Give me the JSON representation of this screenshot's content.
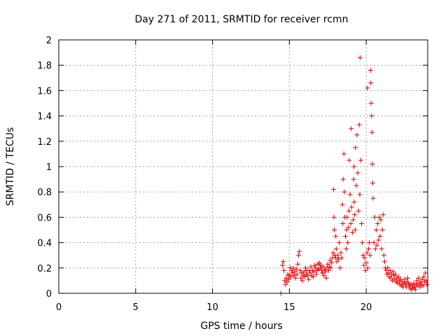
{
  "chart_data": {
    "type": "scatter",
    "title": "Day 271 of 2011, SRMTID for receiver rcmn",
    "xlabel": "GPS time / hours",
    "ylabel": "SRMTID / TECUs",
    "xlim": [
      0,
      24
    ],
    "ylim": [
      0,
      2
    ],
    "xticks": [
      0,
      5,
      10,
      15,
      20
    ],
    "yticks": [
      0,
      0.2,
      0.4,
      0.6,
      0.8,
      1,
      1.2,
      1.4,
      1.6,
      1.8,
      2
    ],
    "ytick_labels": [
      "0",
      "0.2",
      "0.4",
      "0.6",
      "0.8",
      "1",
      "1.2",
      "1.4",
      "1.6",
      "1.8",
      "2"
    ],
    "xtick_labels": [
      "0",
      "5",
      "10",
      "15",
      "20"
    ],
    "grid": true,
    "marker": "plus",
    "color": "#dd0000",
    "series": [
      {
        "name": "SRMTID",
        "points": [
          [
            14.45,
            0.0
          ],
          [
            14.55,
            0.22
          ],
          [
            14.6,
            0.25
          ],
          [
            14.65,
            0.18
          ],
          [
            14.7,
            0.1
          ],
          [
            14.75,
            0.07
          ],
          [
            14.8,
            0.12
          ],
          [
            14.85,
            0.09
          ],
          [
            14.9,
            0.15
          ],
          [
            14.95,
            0.11
          ],
          [
            15.0,
            0.14
          ],
          [
            15.05,
            0.2
          ],
          [
            15.1,
            0.13
          ],
          [
            15.15,
            0.18
          ],
          [
            15.2,
            0.16
          ],
          [
            15.25,
            0.2
          ],
          [
            15.3,
            0.14
          ],
          [
            15.35,
            0.17
          ],
          [
            15.4,
            0.12
          ],
          [
            15.45,
            0.19
          ],
          [
            15.5,
            0.15
          ],
          [
            15.55,
            0.23
          ],
          [
            15.6,
            0.3
          ],
          [
            15.65,
            0.33
          ],
          [
            15.7,
            0.18
          ],
          [
            15.75,
            0.12
          ],
          [
            15.8,
            0.16
          ],
          [
            15.85,
            0.1
          ],
          [
            15.9,
            0.14
          ],
          [
            15.95,
            0.17
          ],
          [
            16.0,
            0.13
          ],
          [
            16.05,
            0.2
          ],
          [
            16.1,
            0.15
          ],
          [
            16.15,
            0.18
          ],
          [
            16.2,
            0.14
          ],
          [
            16.25,
            0.11
          ],
          [
            16.3,
            0.18
          ],
          [
            16.35,
            0.16
          ],
          [
            16.4,
            0.21
          ],
          [
            16.45,
            0.14
          ],
          [
            16.5,
            0.18
          ],
          [
            16.55,
            0.13
          ],
          [
            16.6,
            0.17
          ],
          [
            16.65,
            0.22
          ],
          [
            16.7,
            0.2
          ],
          [
            16.75,
            0.15
          ],
          [
            16.8,
            0.18
          ],
          [
            16.85,
            0.23
          ],
          [
            16.9,
            0.19
          ],
          [
            16.95,
            0.24
          ],
          [
            17.0,
            0.2
          ],
          [
            17.05,
            0.22
          ],
          [
            17.1,
            0.18
          ],
          [
            17.15,
            0.16
          ],
          [
            17.2,
            0.21
          ],
          [
            17.25,
            0.14
          ],
          [
            17.3,
            0.19
          ],
          [
            17.35,
            0.17
          ],
          [
            17.4,
            0.12
          ],
          [
            17.45,
            0.2
          ],
          [
            17.5,
            0.23
          ],
          [
            17.55,
            0.18
          ],
          [
            17.6,
            0.21
          ],
          [
            17.65,
            0.26
          ],
          [
            17.7,
            0.2
          ],
          [
            17.75,
            0.24
          ],
          [
            17.8,
            0.28
          ],
          [
            17.85,
            0.32
          ],
          [
            17.88,
            0.82
          ],
          [
            17.9,
            0.6
          ],
          [
            17.92,
            0.5
          ],
          [
            17.95,
            0.3
          ],
          [
            18.0,
            0.28
          ],
          [
            18.02,
            0.45
          ],
          [
            18.05,
            0.35
          ],
          [
            18.1,
            0.25
          ],
          [
            18.15,
            0.3
          ],
          [
            18.2,
            0.27
          ],
          [
            18.25,
            0.4
          ],
          [
            18.3,
            0.2
          ],
          [
            18.35,
            0.32
          ],
          [
            18.4,
            0.28
          ],
          [
            18.45,
            0.7
          ],
          [
            18.48,
            0.55
          ],
          [
            18.5,
            0.9
          ],
          [
            18.55,
            1.1
          ],
          [
            18.58,
            0.8
          ],
          [
            18.6,
            0.6
          ],
          [
            18.65,
            0.45
          ],
          [
            18.7,
            0.35
          ],
          [
            18.72,
            0.5
          ],
          [
            18.75,
            0.6
          ],
          [
            18.8,
            0.4
          ],
          [
            18.85,
            0.52
          ],
          [
            18.88,
            0.65
          ],
          [
            18.9,
            1.05
          ],
          [
            18.95,
            0.78
          ],
          [
            19.0,
            0.55
          ],
          [
            19.02,
            1.3
          ],
          [
            19.05,
            0.68
          ],
          [
            19.1,
            0.48
          ],
          [
            19.15,
            0.58
          ],
          [
            19.18,
            0.9
          ],
          [
            19.2,
            1.0
          ],
          [
            19.22,
            0.72
          ],
          [
            19.25,
            0.62
          ],
          [
            19.28,
            0.5
          ],
          [
            19.3,
            1.15
          ],
          [
            19.35,
            0.85
          ],
          [
            19.4,
            1.25
          ],
          [
            19.45,
            0.95
          ],
          [
            19.5,
            0.65
          ],
          [
            19.55,
            1.33
          ],
          [
            19.58,
            0.78
          ],
          [
            19.6,
            1.86
          ],
          [
            19.65,
            1.05
          ],
          [
            19.7,
            0.55
          ],
          [
            19.75,
            0.4
          ],
          [
            19.8,
            0.3
          ],
          [
            19.85,
            0.22
          ],
          [
            19.9,
            0.28
          ],
          [
            19.95,
            0.18
          ],
          [
            20.0,
            0.24
          ],
          [
            20.05,
            0.32
          ],
          [
            20.08,
            1.62
          ],
          [
            20.1,
            0.2
          ],
          [
            20.15,
            0.35
          ],
          [
            20.2,
            0.4
          ],
          [
            20.25,
            0.3
          ],
          [
            20.28,
            1.76
          ],
          [
            20.3,
            1.66
          ],
          [
            20.32,
            1.5
          ],
          [
            20.35,
            1.4
          ],
          [
            20.38,
            1.27
          ],
          [
            20.4,
            1.02
          ],
          [
            20.42,
            0.87
          ],
          [
            20.45,
            0.75
          ],
          [
            20.5,
            0.4
          ],
          [
            20.55,
            0.6
          ],
          [
            20.6,
            0.35
          ],
          [
            20.65,
            0.5
          ],
          [
            20.7,
            0.38
          ],
          [
            20.75,
            0.55
          ],
          [
            20.8,
            0.42
          ],
          [
            20.85,
            0.6
          ],
          [
            20.9,
            0.45
          ],
          [
            20.95,
            0.58
          ],
          [
            21.0,
            0.35
          ],
          [
            21.05,
            0.5
          ],
          [
            21.1,
            0.62
          ],
          [
            21.15,
            0.3
          ],
          [
            21.2,
            0.25
          ],
          [
            21.25,
            0.2
          ],
          [
            21.3,
            0.18
          ],
          [
            21.35,
            0.15
          ],
          [
            21.4,
            0.2
          ],
          [
            21.45,
            0.16
          ],
          [
            21.5,
            0.13
          ],
          [
            21.55,
            0.18
          ],
          [
            21.6,
            0.12
          ],
          [
            21.65,
            0.15
          ],
          [
            21.7,
            0.1
          ],
          [
            21.75,
            0.17
          ],
          [
            21.8,
            0.14
          ],
          [
            21.85,
            0.11
          ],
          [
            21.9,
            0.15
          ],
          [
            21.95,
            0.09
          ],
          [
            22.0,
            0.12
          ],
          [
            22.05,
            0.08
          ],
          [
            22.1,
            0.13
          ],
          [
            22.15,
            0.1
          ],
          [
            22.2,
            0.07
          ],
          [
            22.25,
            0.11
          ],
          [
            22.3,
            0.06
          ],
          [
            22.35,
            0.09
          ],
          [
            22.4,
            0.05
          ],
          [
            22.45,
            0.08
          ],
          [
            22.5,
            0.11
          ],
          [
            22.55,
            0.07
          ],
          [
            22.6,
            0.05
          ],
          [
            22.65,
            0.09
          ],
          [
            22.7,
            0.12
          ],
          [
            22.75,
            0.08
          ],
          [
            22.8,
            0.06
          ],
          [
            22.85,
            0.04
          ],
          [
            22.9,
            0.07
          ],
          [
            22.95,
            0.03
          ],
          [
            23.0,
            0.06
          ],
          [
            23.05,
            0.04
          ],
          [
            23.1,
            0.08
          ],
          [
            23.15,
            0.05
          ],
          [
            23.2,
            0.03
          ],
          [
            23.25,
            0.07
          ],
          [
            23.3,
            0.1
          ],
          [
            23.35,
            0.06
          ],
          [
            23.4,
            0.12
          ],
          [
            23.45,
            0.08
          ],
          [
            23.5,
            0.05
          ],
          [
            23.55,
            0.09
          ],
          [
            23.6,
            0.07
          ],
          [
            23.65,
            0.11
          ],
          [
            23.7,
            0.06
          ],
          [
            23.75,
            0.13
          ],
          [
            23.8,
            0.09
          ],
          [
            23.85,
            0.16
          ],
          [
            23.9,
            0.1
          ],
          [
            23.95,
            0.07
          ]
        ]
      }
    ]
  }
}
